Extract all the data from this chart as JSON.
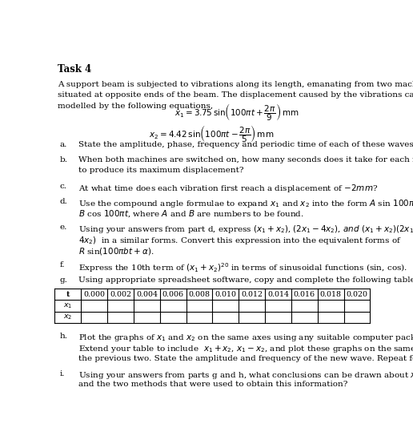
{
  "title": "Task 4",
  "bg_color": "#ffffff",
  "text_color": "#000000",
  "figsize": [
    5.16,
    5.54
  ],
  "dpi": 100,
  "table_headers": [
    "t",
    "0.000",
    "0.002",
    "0.004",
    "0.006",
    "0.008",
    "0.010",
    "0.012",
    "0.014",
    "0.016",
    "0.018",
    "0.020"
  ],
  "table_rows": [
    "x1",
    "x2"
  ]
}
